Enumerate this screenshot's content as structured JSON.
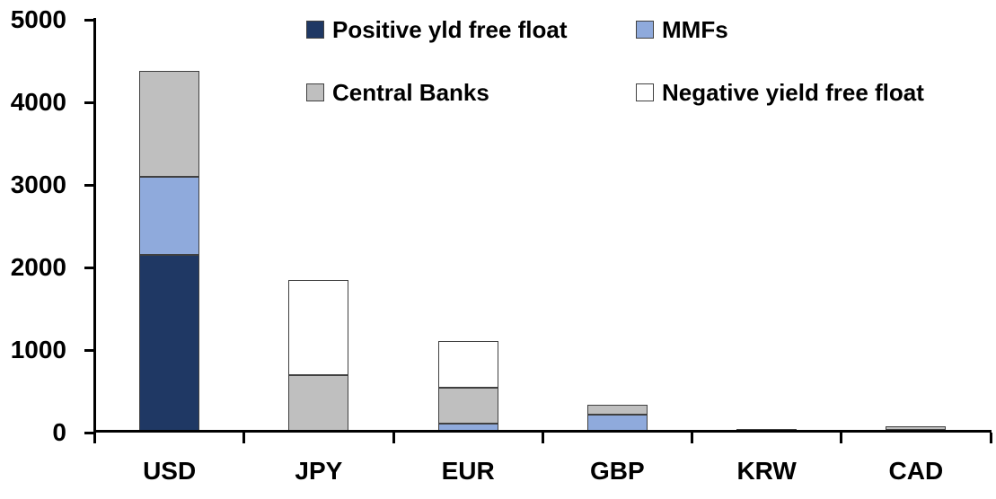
{
  "chart_data": {
    "type": "bar",
    "stacked": true,
    "title": "",
    "xlabel": "",
    "ylabel": "",
    "categories": [
      "USD",
      "JPY",
      "EUR",
      "GBP",
      "KRW",
      "CAD"
    ],
    "series": [
      {
        "name": "Positive yld free float",
        "color": "#1F3864",
        "values": [
          2150,
          0,
          0,
          0,
          40,
          30
        ]
      },
      {
        "name": "MMFs",
        "color": "#8FAADC",
        "values": [
          950,
          0,
          110,
          220,
          0,
          0
        ]
      },
      {
        "name": "Central Banks",
        "color": "#BFBFBF",
        "values": [
          1280,
          700,
          430,
          120,
          0,
          45
        ]
      },
      {
        "name": "Negative yield free float",
        "color": "#FFFFFF",
        "values": [
          0,
          1150,
          570,
          0,
          0,
          0
        ]
      }
    ],
    "category_totals": [
      4380,
      1850,
      1110,
      340,
      40,
      75
    ],
    "ylim": [
      0,
      5000
    ],
    "ytick_interval": 1000,
    "yticks": [
      "0",
      "1000",
      "2000",
      "3000",
      "4000",
      "5000"
    ],
    "legend_position": "top-inside",
    "legend_rows": [
      [
        "Positive yld free float",
        "MMFs"
      ],
      [
        "Central Banks",
        "Negative yield free float"
      ]
    ],
    "grid": false,
    "axis_color": "#000000",
    "segment_border_color": "#404040",
    "background_color": "#FFFFFF"
  }
}
